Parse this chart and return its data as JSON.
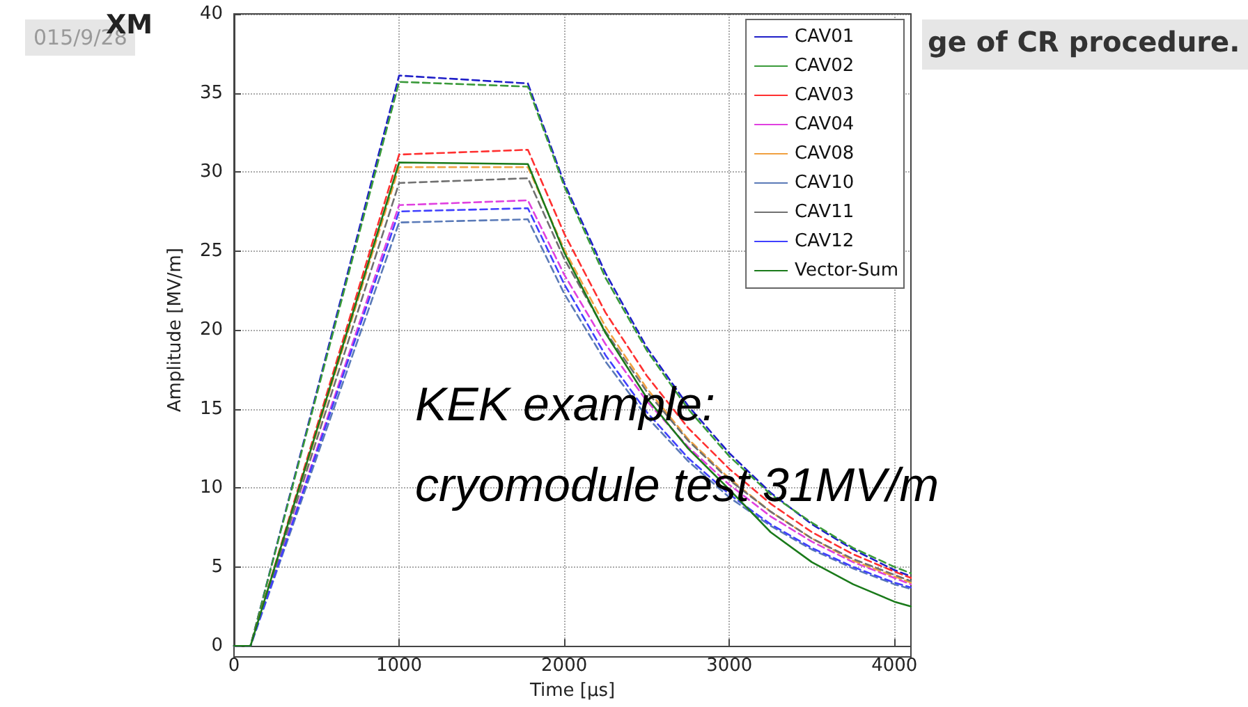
{
  "chart_data": {
    "type": "line",
    "xlabel": "Time [μs]",
    "ylabel": "Amplitude [MV/m]",
    "annotations": [
      "015/9/28",
      "XM",
      "ge of CR procedure.",
      "KEK example:\ncryomodule test 31MV/m"
    ],
    "x": [
      0,
      100,
      1000,
      1780,
      2000,
      2250,
      2500,
      2750,
      3000,
      3250,
      3500,
      3750,
      4000,
      4100
    ],
    "xlim": [
      0,
      4100
    ],
    "xticks": [
      0,
      1000,
      2000,
      3000,
      4000
    ],
    "ylim": [
      0,
      40
    ],
    "yticks": [
      0,
      5,
      10,
      15,
      20,
      25,
      30,
      35,
      40
    ],
    "grid": true,
    "legend": "top right",
    "marker": "none",
    "series": [
      {
        "name": "CAV01",
        "color": "#1f1fc8",
        "line_style": "dashed",
        "values": [
          0,
          0,
          36.1,
          35.6,
          29.3,
          23.6,
          18.9,
          15.2,
          12.2,
          9.7,
          7.7,
          6.1,
          4.8,
          4.4
        ]
      },
      {
        "name": "CAV02",
        "color": "#3a9a3a",
        "line_style": "dashed",
        "values": [
          0,
          0,
          35.7,
          35.4,
          29.1,
          23.3,
          18.7,
          15.0,
          12.0,
          9.6,
          7.8,
          6.2,
          5.0,
          4.6
        ]
      },
      {
        "name": "CAV03",
        "color": "#ff3030",
        "line_style": "dashed",
        "values": [
          0,
          0,
          31.1,
          31.4,
          26.1,
          21.1,
          17.1,
          13.8,
          11.2,
          9.0,
          7.2,
          5.8,
          4.7,
          4.3
        ]
      },
      {
        "name": "CAV04",
        "color": "#e040e0",
        "line_style": "dashed",
        "values": [
          0,
          0,
          27.9,
          28.2,
          23.5,
          19.1,
          15.5,
          12.6,
          10.2,
          8.2,
          6.6,
          5.3,
          4.3,
          3.9
        ]
      },
      {
        "name": "CAV08",
        "color": "#f0a040",
        "line_style": "dashed",
        "values": [
          0,
          0,
          30.3,
          30.3,
          25.1,
          20.2,
          16.3,
          13.1,
          10.6,
          8.5,
          6.8,
          5.4,
          4.4,
          4.0
        ]
      },
      {
        "name": "CAV10",
        "color": "#5a7ab8",
        "line_style": "dashed",
        "values": [
          0,
          0,
          26.8,
          27.0,
          22.3,
          18.0,
          14.5,
          11.7,
          9.4,
          7.6,
          6.1,
          4.9,
          3.9,
          3.6
        ]
      },
      {
        "name": "CAV11",
        "color": "#707070",
        "line_style": "dashed",
        "values": [
          0,
          0,
          29.3,
          29.6,
          24.5,
          19.9,
          16.1,
          13.0,
          10.5,
          8.5,
          6.8,
          5.5,
          4.5,
          4.1
        ]
      },
      {
        "name": "CAV12",
        "color": "#4040ff",
        "line_style": "dashed",
        "values": [
          0,
          0,
          27.5,
          27.7,
          22.9,
          18.4,
          14.8,
          11.9,
          9.6,
          7.7,
          6.2,
          5.0,
          4.0,
          3.7
        ]
      },
      {
        "name": "Vector-Sum",
        "color": "#1a7a1a",
        "line_style": "solid",
        "values": [
          0,
          0,
          30.6,
          30.5,
          24.9,
          19.8,
          15.7,
          12.5,
          9.9,
          7.2,
          5.3,
          3.9,
          2.8,
          2.5
        ]
      }
    ]
  }
}
